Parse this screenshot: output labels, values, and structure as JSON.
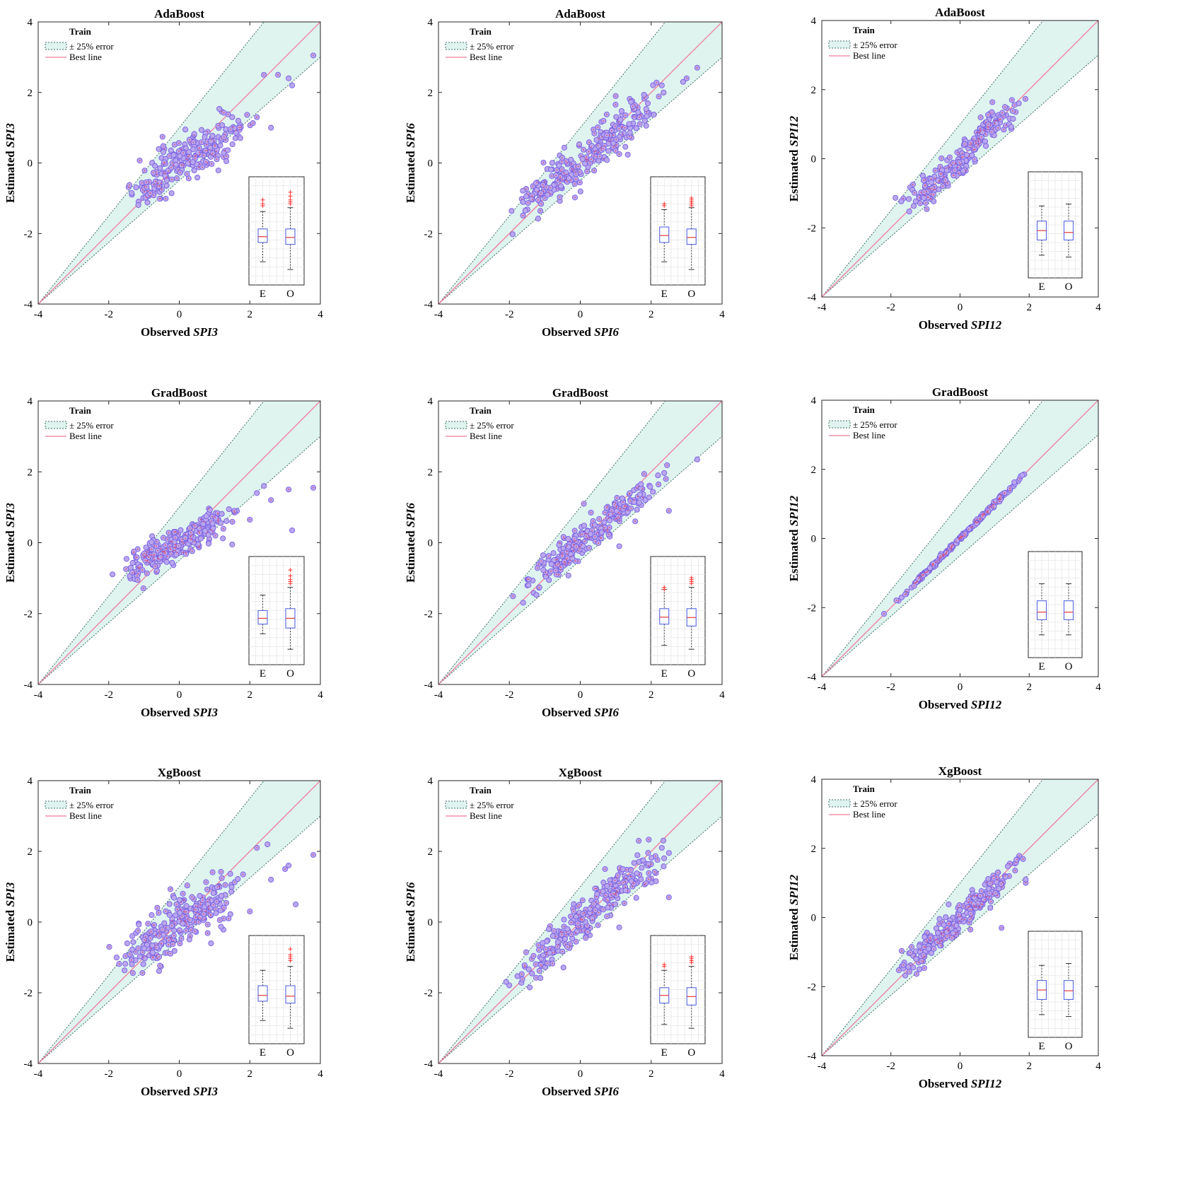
{
  "colors": {
    "band_fill": "#dff3ef",
    "band_edge": "#3c6e63",
    "best_line": "#f07a9a",
    "point_fill": "#b9a7ef",
    "point_edge": "#7a5fe0",
    "box_edge": "#5566e0",
    "median": "#e03b3b",
    "outlier": "#ff3030"
  },
  "legend": {
    "title": "Train",
    "band": "± 25% error",
    "line": "Best line"
  },
  "chart_data": [
    {
      "id": "p00",
      "type": "scatter",
      "title": "AdaBoost",
      "xlabel_prefix": "Observed",
      "ylabel_prefix": "Estimated",
      "variable": "SPI3",
      "xlim": [
        -4,
        4
      ],
      "ylim": [
        -4,
        4
      ],
      "ticks": [
        "-4",
        "-2",
        "0",
        "2",
        "4"
      ],
      "model_curve": [
        [
          -2,
          -1.2
        ],
        [
          -1,
          -0.7
        ],
        [
          0,
          0.1
        ],
        [
          1,
          0.6
        ],
        [
          1.5,
          0.85
        ],
        [
          2.5,
          1.5
        ],
        [
          3.8,
          2.4
        ]
      ],
      "spread": 0.35,
      "n": 240,
      "x_range": [
        -2,
        2.5
      ],
      "seed": 11,
      "extra_points": [
        [
          3.8,
          3.05
        ],
        [
          3.2,
          2.2
        ],
        [
          2.8,
          2.5
        ],
        [
          3.1,
          2.4
        ],
        [
          2.4,
          2.5
        ],
        [
          2.6,
          1.0
        ],
        [
          2.2,
          1.3
        ]
      ],
      "inset": {
        "labels": [
          "E",
          "O"
        ],
        "E": {
          "q1": -2.1,
          "med": -1.95,
          "q3": -1.75,
          "wlo": -2.6,
          "whi": -1.3,
          "out": [
            -1.0,
            -1.1,
            -1.15
          ]
        },
        "O": {
          "q1": -2.15,
          "med": -1.97,
          "q3": -1.75,
          "wlo": -2.8,
          "whi": -1.2,
          "out": [
            -0.8,
            -0.9,
            -1.0,
            -1.05,
            -1.1
          ]
        }
      }
    },
    {
      "id": "p01",
      "type": "scatter",
      "title": "AdaBoost",
      "xlabel_prefix": "Observed",
      "ylabel_prefix": "Estimated",
      "variable": "SPI6",
      "xlim": [
        -4,
        4
      ],
      "ylim": [
        -4,
        4
      ],
      "ticks": [
        "-4",
        "-2",
        "0",
        "2",
        "4"
      ],
      "model_curve": [
        [
          -2.3,
          -1.5
        ],
        [
          -1,
          -0.7
        ],
        [
          0,
          0.0
        ],
        [
          1,
          0.8
        ],
        [
          2,
          1.5
        ],
        [
          3.2,
          2.5
        ]
      ],
      "spread": 0.3,
      "n": 260,
      "x_range": [
        -2.3,
        3.2
      ],
      "seed": 23,
      "extra_points": [
        [
          3.3,
          2.7
        ],
        [
          2.9,
          2.3
        ],
        [
          3.0,
          2.4
        ],
        [
          2.3,
          2.2
        ],
        [
          1.0,
          1.9
        ]
      ],
      "inset": {
        "labels": [
          "E",
          "O"
        ],
        "E": {
          "q1": -2.1,
          "med": -1.92,
          "q3": -1.7,
          "wlo": -2.6,
          "whi": -1.25,
          "out": [
            -1.1,
            -1.15
          ]
        },
        "O": {
          "q1": -2.15,
          "med": -1.97,
          "q3": -1.75,
          "wlo": -2.8,
          "whi": -1.2,
          "out": [
            -0.95,
            -1.0,
            -1.05,
            -1.1,
            -1.15
          ]
        }
      }
    },
    {
      "id": "p02",
      "type": "scatter",
      "title": "AdaBoost",
      "xlabel_prefix": "Observed",
      "ylabel_prefix": "Estimated",
      "variable": "SPI12",
      "xlim": [
        -4,
        4
      ],
      "ylim": [
        -4,
        4
      ],
      "ticks": [
        "-4",
        "-2",
        "0",
        "2",
        "4"
      ],
      "model_curve": [
        [
          -2.3,
          -1.65
        ],
        [
          -1,
          -0.9
        ],
        [
          0,
          -0.1
        ],
        [
          0.8,
          0.9
        ],
        [
          1.6,
          1.3
        ],
        [
          2.0,
          1.8
        ]
      ],
      "spread": 0.22,
      "n": 230,
      "x_range": [
        -2.3,
        2.0
      ],
      "seed": 37,
      "extra_points": [
        [
          1.5,
          1.7
        ],
        [
          1.7,
          1.6
        ],
        [
          1.3,
          1.5
        ]
      ],
      "inset": {
        "labels": [
          "E",
          "O"
        ],
        "E": {
          "q1": -2.2,
          "med": -1.95,
          "q3": -1.7,
          "wlo": -2.6,
          "whi": -1.3,
          "out": []
        },
        "O": {
          "q1": -2.2,
          "med": -2.0,
          "q3": -1.7,
          "wlo": -2.65,
          "whi": -1.25,
          "out": []
        }
      }
    },
    {
      "id": "p10",
      "type": "scatter",
      "title": "GradBoost",
      "xlabel_prefix": "Observed",
      "ylabel_prefix": "Estimated",
      "variable": "SPI3",
      "xlim": [
        -4,
        4
      ],
      "ylim": [
        -4,
        4
      ],
      "ticks": [
        "-4",
        "-2",
        "0",
        "2",
        "4"
      ],
      "model_curve": [
        [
          -2,
          -0.95
        ],
        [
          -1,
          -0.55
        ],
        [
          0,
          0.0
        ],
        [
          1,
          0.5
        ],
        [
          2,
          1.0
        ],
        [
          3.8,
          1.6
        ]
      ],
      "spread": 0.25,
      "n": 260,
      "x_range": [
        -2,
        1.8
      ],
      "seed": 41,
      "extra_points": [
        [
          3.8,
          1.55
        ],
        [
          3.2,
          0.35
        ],
        [
          3.1,
          1.5
        ],
        [
          2.4,
          1.6
        ],
        [
          2.0,
          0.65
        ],
        [
          1.5,
          -0.05
        ],
        [
          2.6,
          1.2
        ],
        [
          2.2,
          1.4
        ]
      ],
      "inset": {
        "labels": [
          "E",
          "O"
        ],
        "E": {
          "q1": -2.15,
          "med": -2.0,
          "q3": -1.8,
          "wlo": -2.4,
          "whi": -1.4,
          "out": []
        },
        "O": {
          "q1": -2.25,
          "med": -2.0,
          "q3": -1.75,
          "wlo": -2.8,
          "whi": -1.2,
          "out": [
            -0.75,
            -0.9,
            -1.0,
            -1.05,
            -1.1
          ]
        }
      }
    },
    {
      "id": "p11",
      "type": "scatter",
      "title": "GradBoost",
      "xlabel_prefix": "Observed",
      "ylabel_prefix": "Estimated",
      "variable": "SPI6",
      "xlim": [
        -4,
        4
      ],
      "ylim": [
        -4,
        4
      ],
      "ticks": [
        "-4",
        "-2",
        "0",
        "2",
        "4"
      ],
      "model_curve": [
        [
          -2.3,
          -1.75
        ],
        [
          -1,
          -0.8
        ],
        [
          0,
          0.0
        ],
        [
          1,
          0.8
        ],
        [
          2,
          1.5
        ],
        [
          3.2,
          2.3
        ]
      ],
      "spread": 0.25,
      "n": 250,
      "x_range": [
        -2.2,
        3.2
      ],
      "seed": 53,
      "extra_points": [
        [
          2.5,
          0.9
        ],
        [
          1.1,
          -0.1
        ],
        [
          0.1,
          1.1
        ],
        [
          3.3,
          2.35
        ]
      ],
      "inset": {
        "labels": [
          "E",
          "O"
        ],
        "E": {
          "q1": -2.15,
          "med": -1.97,
          "q3": -1.75,
          "wlo": -2.7,
          "whi": -1.25,
          "out": [
            -1.2,
            -1.25
          ]
        },
        "O": {
          "q1": -2.2,
          "med": -1.98,
          "q3": -1.75,
          "wlo": -2.8,
          "whi": -1.2,
          "out": [
            -0.95,
            -1.0,
            -1.05,
            -1.1
          ]
        }
      }
    },
    {
      "id": "p12",
      "type": "scatter",
      "title": "GradBoost",
      "xlabel_prefix": "Observed",
      "ylabel_prefix": "Estimated",
      "variable": "SPI12",
      "xlim": [
        -4,
        4
      ],
      "ylim": [
        -4,
        4
      ],
      "ticks": [
        "-4",
        "-2",
        "0",
        "2",
        "4"
      ],
      "model_curve": [
        [
          -2.2,
          -2.2
        ],
        [
          0,
          0.0
        ],
        [
          2.2,
          2.2
        ]
      ],
      "spread": 0.03,
      "n": 220,
      "x_range": [
        -2.2,
        2.2
      ],
      "seed": 67,
      "extra_points": [],
      "inset": {
        "labels": [
          "E",
          "O"
        ],
        "E": {
          "q1": -2.2,
          "med": -2.0,
          "q3": -1.7,
          "wlo": -2.6,
          "whi": -1.25,
          "out": []
        },
        "O": {
          "q1": -2.2,
          "med": -2.0,
          "q3": -1.7,
          "wlo": -2.6,
          "whi": -1.25,
          "out": []
        }
      }
    },
    {
      "id": "p20",
      "type": "scatter",
      "title": "XgBoost",
      "xlabel_prefix": "Observed",
      "ylabel_prefix": "Estimated",
      "variable": "SPI3",
      "xlim": [
        -4,
        4
      ],
      "ylim": [
        -4,
        4
      ],
      "ticks": [
        "-4",
        "-2",
        "0",
        "2",
        "4"
      ],
      "model_curve": [
        [
          -2,
          -1.2
        ],
        [
          -1,
          -0.7
        ],
        [
          0,
          0.0
        ],
        [
          1,
          0.6
        ],
        [
          2,
          1.2
        ],
        [
          3.8,
          2.0
        ]
      ],
      "spread": 0.4,
      "n": 260,
      "x_range": [
        -2,
        2.2
      ],
      "seed": 71,
      "extra_points": [
        [
          3.8,
          1.9
        ],
        [
          3.3,
          0.5
        ],
        [
          3.0,
          1.5
        ],
        [
          2.5,
          2.2
        ],
        [
          2.2,
          2.1
        ],
        [
          2.6,
          1.2
        ],
        [
          2.0,
          0.3
        ],
        [
          3.1,
          1.6
        ],
        [
          1.4,
          0.1
        ],
        [
          0.9,
          -0.6
        ]
      ],
      "inset": {
        "labels": [
          "E",
          "O"
        ],
        "E": {
          "q1": -2.1,
          "med": -1.95,
          "q3": -1.7,
          "wlo": -2.6,
          "whi": -1.3,
          "out": []
        },
        "O": {
          "q1": -2.15,
          "med": -1.97,
          "q3": -1.7,
          "wlo": -2.8,
          "whi": -1.2,
          "out": [
            -0.75,
            -0.9,
            -0.95,
            -1.0,
            -1.05
          ]
        }
      }
    },
    {
      "id": "p21",
      "type": "scatter",
      "title": "XgBoost",
      "xlabel_prefix": "Observed",
      "ylabel_prefix": "Estimated",
      "variable": "SPI6",
      "xlim": [
        -4,
        4
      ],
      "ylim": [
        -4,
        4
      ],
      "ticks": [
        "-4",
        "-2",
        "0",
        "2",
        "4"
      ],
      "model_curve": [
        [
          -2.3,
          -1.85
        ],
        [
          -1,
          -0.9
        ],
        [
          0,
          -0.05
        ],
        [
          1,
          0.9
        ],
        [
          2,
          1.6
        ],
        [
          3.3,
          2.6
        ]
      ],
      "spread": 0.3,
      "n": 260,
      "x_range": [
        -2.3,
        3.3
      ],
      "seed": 83,
      "extra_points": [
        [
          2.5,
          0.7
        ],
        [
          1.1,
          -0.15
        ],
        [
          0.7,
          1.5
        ],
        [
          2.3,
          2.1
        ]
      ],
      "inset": {
        "labels": [
          "E",
          "O"
        ],
        "E": {
          "q1": -2.15,
          "med": -1.95,
          "q3": -1.75,
          "wlo": -2.7,
          "whi": -1.3,
          "out": [
            -1.15,
            -1.2
          ]
        },
        "O": {
          "q1": -2.2,
          "med": -1.98,
          "q3": -1.75,
          "wlo": -2.8,
          "whi": -1.2,
          "out": [
            -0.95,
            -1.0,
            -1.05,
            -1.1
          ]
        }
      }
    },
    {
      "id": "p22",
      "type": "scatter",
      "title": "XgBoost",
      "xlabel_prefix": "Observed",
      "ylabel_prefix": "Estimated",
      "variable": "SPI12",
      "xlim": [
        -4,
        4
      ],
      "ylim": [
        -4,
        4
      ],
      "ticks": [
        "-4",
        "-2",
        "0",
        "2",
        "4"
      ],
      "model_curve": [
        [
          -2.3,
          -2.0
        ],
        [
          -1,
          -0.9
        ],
        [
          0,
          0.0
        ],
        [
          1,
          0.9
        ],
        [
          2,
          1.8
        ]
      ],
      "spread": 0.22,
      "n": 240,
      "x_range": [
        -2.3,
        2.0
      ],
      "seed": 97,
      "extra_points": [
        [
          1.9,
          1.0
        ],
        [
          1.9,
          1.1
        ],
        [
          1.2,
          -0.3
        ],
        [
          -0.2,
          -0.45
        ],
        [
          0.3,
          -0.35
        ]
      ],
      "inset": {
        "labels": [
          "E",
          "O"
        ],
        "E": {
          "q1": -2.2,
          "med": -1.95,
          "q3": -1.7,
          "wlo": -2.6,
          "whi": -1.3,
          "out": []
        },
        "O": {
          "q1": -2.2,
          "med": -1.97,
          "q3": -1.7,
          "wlo": -2.65,
          "whi": -1.25,
          "out": []
        }
      }
    }
  ]
}
